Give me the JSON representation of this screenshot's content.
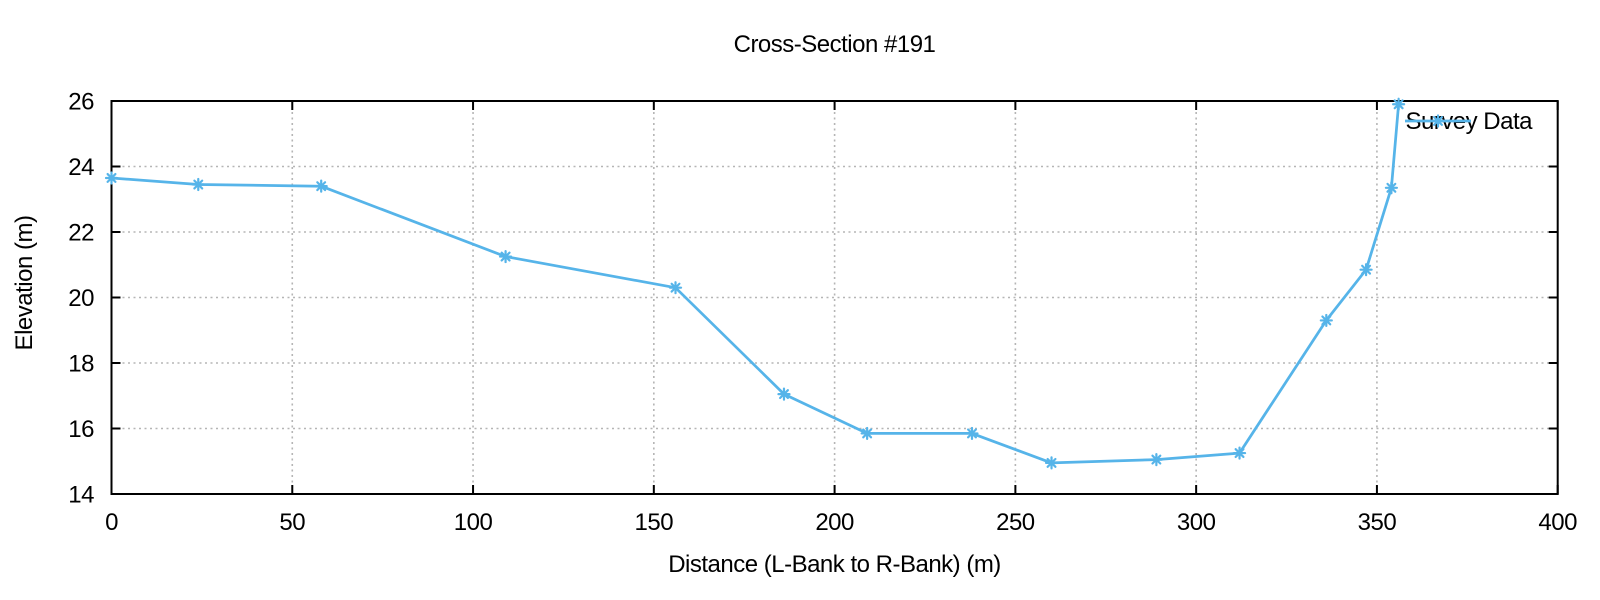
{
  "colors": {
    "series": "#56b4e9",
    "grid": "#b5b5b5",
    "axis": "#000000",
    "background": "#ffffff",
    "text": "#000000"
  },
  "chart_data": {
    "type": "line",
    "title": "Cross-Section #191",
    "xlabel": "Distance (L-Bank to R-Bank) (m)",
    "ylabel": "Elevation (m)",
    "xlim": [
      0,
      400
    ],
    "ylim": [
      14,
      26
    ],
    "xtick_step": 50,
    "ytick_step": 2,
    "grid": true,
    "grid_style": "dotted",
    "legend": {
      "label": "Survey Data",
      "position": "top-right-inside"
    },
    "series": [
      {
        "name": "Survey Data",
        "color": "#56b4e9",
        "marker": "asterisk",
        "points": [
          [
            0,
            23.65
          ],
          [
            24,
            23.45
          ],
          [
            58,
            23.4
          ],
          [
            109,
            21.25
          ],
          [
            156,
            20.3
          ],
          [
            186,
            17.05
          ],
          [
            209,
            15.85
          ],
          [
            238,
            15.85
          ],
          [
            260,
            14.95
          ],
          [
            289,
            15.05
          ],
          [
            312,
            15.25
          ],
          [
            336,
            19.3
          ],
          [
            347,
            20.85
          ],
          [
            354,
            23.35
          ],
          [
            356,
            25.9
          ]
        ]
      }
    ]
  }
}
